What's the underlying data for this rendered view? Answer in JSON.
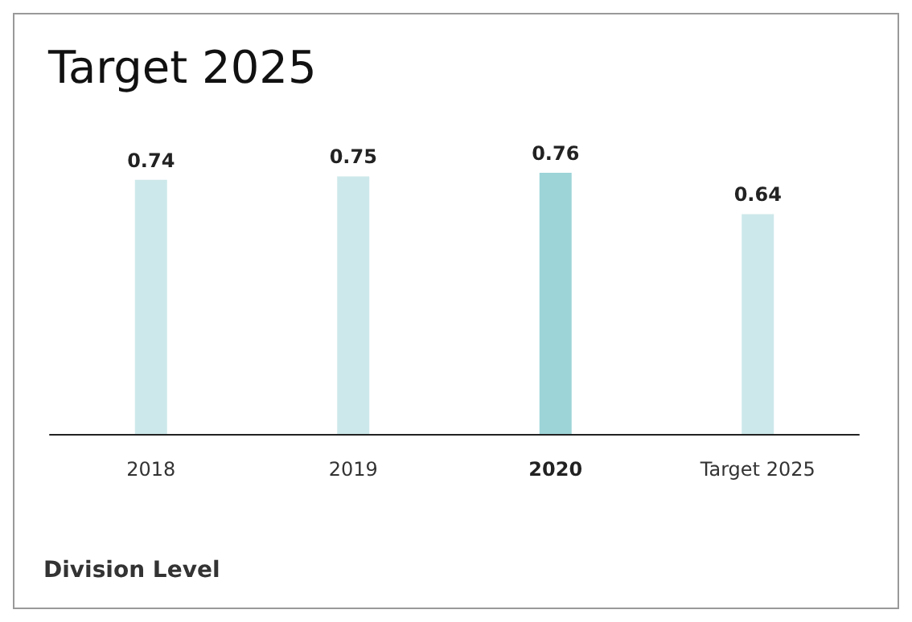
{
  "chart_data": {
    "type": "bar",
    "title": "Target 2025",
    "categories": [
      "2018",
      "2019",
      "2020",
      "Target 2025"
    ],
    "values": [
      0.74,
      0.75,
      0.76,
      0.64
    ],
    "colors": [
      "#cde8ea",
      "#cde8ea",
      "#9dd4d8",
      "#cde8ea"
    ],
    "data_labels": true,
    "annotations": [
      "Division Level"
    ]
  }
}
